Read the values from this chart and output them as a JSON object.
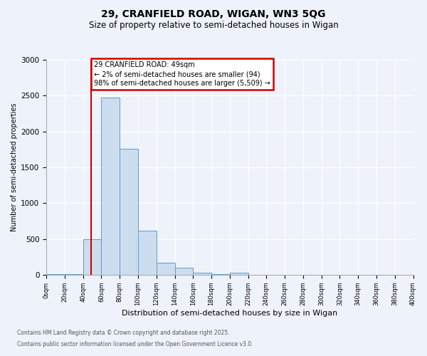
{
  "title": "29, CRANFIELD ROAD, WIGAN, WN3 5QG",
  "subtitle": "Size of property relative to semi-detached houses in Wigan",
  "xlabel": "Distribution of semi-detached houses by size in Wigan",
  "ylabel": "Number of semi-detached properties",
  "bin_edges": [
    0,
    20,
    40,
    60,
    80,
    100,
    120,
    140,
    160,
    180,
    200,
    220,
    240,
    260,
    280,
    300,
    320,
    340,
    360,
    380,
    400
  ],
  "bar_values": [
    5,
    8,
    500,
    2470,
    1760,
    610,
    165,
    95,
    30,
    5,
    28,
    0,
    0,
    0,
    0,
    0,
    0,
    0,
    0,
    0
  ],
  "bar_color": "#ccddf0",
  "bar_edge_color": "#6699cc",
  "property_size": 49,
  "vline_color": "#cc0000",
  "annotation_line1": "29 CRANFIELD ROAD: 49sqm",
  "annotation_line2": "← 2% of semi-detached houses are smaller (94)",
  "annotation_line3": "98% of semi-detached houses are larger (5,509) →",
  "annotation_box_facecolor": "#ffffff",
  "annotation_box_edgecolor": "#cc0000",
  "footnote1": "Contains HM Land Registry data © Crown copyright and database right 2025.",
  "footnote2": "Contains public sector information licensed under the Open Government Licence v3.0.",
  "background_color": "#eef2fb",
  "grid_color": "#ffffff",
  "ylim": [
    0,
    3000
  ],
  "xlim": [
    0,
    400
  ],
  "yticks": [
    0,
    500,
    1000,
    1500,
    2000,
    2500,
    3000
  ]
}
